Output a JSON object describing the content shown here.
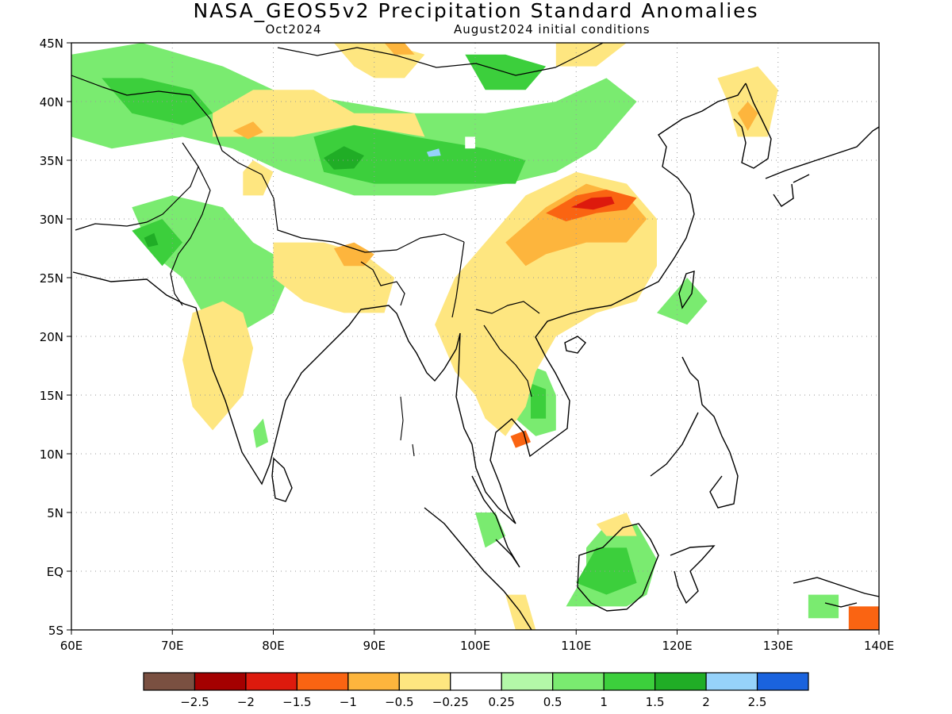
{
  "title": "NASA_GEOS5v2 Precipitation Standard Anomalies",
  "subtitle_left": "Oct2024",
  "subtitle_right": "August2024 initial conditions",
  "map": {
    "lon_range": [
      60,
      140
    ],
    "lat_range": [
      -5,
      45
    ],
    "lon_labels": [
      {
        "lon": 60,
        "label": "60E"
      },
      {
        "lon": 70,
        "label": "70E"
      },
      {
        "lon": 80,
        "label": "80E"
      },
      {
        "lon": 90,
        "label": "90E"
      },
      {
        "lon": 100,
        "label": "100E"
      },
      {
        "lon": 110,
        "label": "110E"
      },
      {
        "lon": 120,
        "label": "120E"
      },
      {
        "lon": 130,
        "label": "130E"
      },
      {
        "lon": 140,
        "label": "140E"
      }
    ],
    "lat_labels": [
      {
        "lat": 45,
        "label": "45N"
      },
      {
        "lat": 40,
        "label": "40N"
      },
      {
        "lat": 35,
        "label": "35N"
      },
      {
        "lat": 30,
        "label": "30N"
      },
      {
        "lat": 25,
        "label": "25N"
      },
      {
        "lat": 20,
        "label": "20N"
      },
      {
        "lat": 15,
        "label": "15N"
      },
      {
        "lat": 10,
        "label": "10N"
      },
      {
        "lat": 5,
        "label": "5N"
      },
      {
        "lat": 0,
        "label": "EQ"
      },
      {
        "lat": -5,
        "label": "5S"
      }
    ],
    "anomaly_regions": [
      {
        "level": "1",
        "pts": [
          [
            60,
            44
          ],
          [
            67,
            45
          ],
          [
            75,
            43
          ],
          [
            80,
            41
          ],
          [
            87,
            40
          ],
          [
            94,
            39
          ],
          [
            101,
            39
          ],
          [
            108,
            40
          ],
          [
            113,
            42
          ],
          [
            116,
            40
          ],
          [
            112,
            36
          ],
          [
            108,
            34
          ],
          [
            103,
            33
          ],
          [
            96,
            32
          ],
          [
            88,
            32
          ],
          [
            81,
            34
          ],
          [
            76,
            36
          ],
          [
            71,
            37
          ],
          [
            64,
            36
          ],
          [
            60,
            37
          ]
        ]
      },
      {
        "level": "1.5",
        "pts": [
          [
            63,
            42
          ],
          [
            67,
            42
          ],
          [
            72,
            41
          ],
          [
            74,
            39
          ],
          [
            71,
            38
          ],
          [
            66,
            39
          ]
        ]
      },
      {
        "level": "1.5",
        "pts": [
          [
            84,
            37
          ],
          [
            88,
            38
          ],
          [
            94,
            37
          ],
          [
            101,
            36
          ],
          [
            105,
            35
          ],
          [
            104,
            33
          ],
          [
            97,
            33
          ],
          [
            90,
            33
          ],
          [
            85,
            34
          ]
        ]
      },
      {
        "level": "1.5",
        "pts": [
          [
            99,
            44
          ],
          [
            103,
            44
          ],
          [
            107,
            43
          ],
          [
            105,
            41
          ],
          [
            101,
            41
          ]
        ]
      },
      {
        "level": "2",
        "pts": [
          [
            85,
            35.2
          ],
          [
            87,
            36.2
          ],
          [
            89,
            35.4
          ],
          [
            88,
            34.3
          ],
          [
            86,
            34.2
          ]
        ]
      },
      {
        "level": "2.5",
        "pts": [
          [
            95.2,
            35.7
          ],
          [
            96.4,
            36
          ],
          [
            96.6,
            35.4
          ],
          [
            95.4,
            35.3
          ]
        ]
      },
      {
        "level": "1",
        "pts": [
          [
            66,
            31
          ],
          [
            70,
            32
          ],
          [
            75,
            31
          ],
          [
            78,
            28
          ],
          [
            82,
            26
          ],
          [
            80,
            22
          ],
          [
            76,
            20
          ],
          [
            73,
            22
          ],
          [
            71,
            25
          ],
          [
            68,
            27
          ]
        ]
      },
      {
        "level": "1.5",
        "pts": [
          [
            66,
            29
          ],
          [
            69,
            30
          ],
          [
            71,
            28
          ],
          [
            69,
            26
          ]
        ]
      },
      {
        "level": "2",
        "pts": [
          [
            67.2,
            28.4
          ],
          [
            68.2,
            28.8
          ],
          [
            68.6,
            27.8
          ],
          [
            67.6,
            27.6
          ]
        ]
      },
      {
        "level": "1",
        "pts": [
          [
            78,
            12
          ],
          [
            79,
            13
          ],
          [
            79.5,
            11
          ],
          [
            78.3,
            10.5
          ]
        ]
      },
      {
        "level": "1",
        "pts": [
          [
            104,
            18
          ],
          [
            107,
            17
          ],
          [
            108,
            15
          ],
          [
            108,
            12
          ],
          [
            106,
            11.5
          ],
          [
            104,
            13
          ]
        ]
      },
      {
        "level": "1.5",
        "pts": [
          [
            105.5,
            16
          ],
          [
            107,
            15.5
          ],
          [
            107,
            13
          ],
          [
            105.5,
            13
          ]
        ]
      },
      {
        "level": "1",
        "pts": [
          [
            109,
            -3
          ],
          [
            111,
            0
          ],
          [
            111,
            2
          ],
          [
            113,
            4
          ],
          [
            116,
            4
          ],
          [
            118,
            1
          ],
          [
            117,
            -2
          ],
          [
            115,
            -3
          ],
          [
            111,
            -3
          ]
        ]
      },
      {
        "level": "1.5",
        "pts": [
          [
            110,
            -1
          ],
          [
            112,
            2
          ],
          [
            115,
            2
          ],
          [
            116,
            -1
          ],
          [
            113,
            -2
          ]
        ]
      },
      {
        "level": "1",
        "pts": [
          [
            100,
            5
          ],
          [
            102,
            5
          ],
          [
            103,
            3
          ],
          [
            101,
            2
          ]
        ]
      },
      {
        "level": "1",
        "pts": [
          [
            118,
            22
          ],
          [
            121,
            25
          ],
          [
            123,
            23
          ],
          [
            121,
            21
          ]
        ]
      },
      {
        "level": "1",
        "pts": [
          [
            133,
            -2
          ],
          [
            136,
            -2
          ],
          [
            136,
            -4
          ],
          [
            133,
            -4
          ]
        ]
      },
      {
        "level": "-0.5",
        "pts": [
          [
            74,
            39
          ],
          [
            78,
            41
          ],
          [
            84,
            41
          ],
          [
            88,
            39
          ],
          [
            94,
            39
          ],
          [
            95,
            37
          ],
          [
            88,
            38
          ],
          [
            82,
            37
          ],
          [
            77,
            37
          ],
          [
            74,
            37
          ]
        ]
      },
      {
        "level": "-0.5",
        "pts": [
          [
            86,
            45
          ],
          [
            91,
            45
          ],
          [
            95,
            44
          ],
          [
            93,
            42
          ],
          [
            90,
            42
          ],
          [
            88,
            43
          ]
        ]
      },
      {
        "level": "-0.5",
        "pts": [
          [
            108,
            45
          ],
          [
            115,
            45
          ],
          [
            112,
            43
          ],
          [
            108,
            43
          ]
        ]
      },
      {
        "level": "-0.5",
        "pts": [
          [
            124,
            42
          ],
          [
            128,
            43
          ],
          [
            130,
            41
          ],
          [
            129,
            37
          ],
          [
            126,
            37
          ],
          [
            125,
            40
          ]
        ]
      },
      {
        "level": "-0.5",
        "pts": [
          [
            96,
            21
          ],
          [
            98,
            25
          ],
          [
            101,
            28
          ],
          [
            105,
            32
          ],
          [
            110,
            34
          ],
          [
            115,
            33
          ],
          [
            118,
            30
          ],
          [
            118,
            26
          ],
          [
            116,
            23
          ],
          [
            112,
            22
          ],
          [
            108,
            20
          ],
          [
            106,
            17
          ],
          [
            105,
            14
          ],
          [
            103,
            11.5
          ],
          [
            101,
            13
          ],
          [
            100,
            15
          ],
          [
            98,
            17
          ]
        ]
      },
      {
        "level": "-1",
        "pts": [
          [
            103,
            28
          ],
          [
            107,
            31
          ],
          [
            111,
            33
          ],
          [
            115,
            32
          ],
          [
            117,
            30
          ],
          [
            115,
            28
          ],
          [
            111,
            28
          ],
          [
            107,
            27
          ],
          [
            105,
            26
          ]
        ]
      },
      {
        "level": "-1.5",
        "pts": [
          [
            107,
            30.5
          ],
          [
            110,
            32
          ],
          [
            113,
            32.5
          ],
          [
            116,
            31.8
          ],
          [
            115,
            30.8
          ],
          [
            112,
            30.5
          ],
          [
            109,
            29.8
          ]
        ]
      },
      {
        "level": "-2",
        "pts": [
          [
            109.5,
            31
          ],
          [
            111.5,
            31.8
          ],
          [
            113.5,
            31.9
          ],
          [
            113.8,
            31.3
          ],
          [
            111.7,
            30.8
          ]
        ]
      },
      {
        "level": "-0.5",
        "pts": [
          [
            72,
            22
          ],
          [
            75,
            23
          ],
          [
            77,
            22
          ],
          [
            78,
            19
          ],
          [
            77,
            15
          ],
          [
            74,
            12
          ],
          [
            72,
            14
          ],
          [
            71,
            18
          ]
        ]
      },
      {
        "level": "-0.5",
        "pts": [
          [
            80,
            28
          ],
          [
            85,
            28
          ],
          [
            89,
            27
          ],
          [
            92,
            25
          ],
          [
            91,
            22
          ],
          [
            87,
            22
          ],
          [
            83,
            23
          ],
          [
            80,
            25
          ]
        ]
      },
      {
        "level": "-1",
        "pts": [
          [
            86,
            27.5
          ],
          [
            88,
            28
          ],
          [
            90,
            27
          ],
          [
            89,
            26
          ],
          [
            87,
            26
          ]
        ]
      },
      {
        "level": "-0.5",
        "pts": [
          [
            103,
            -2
          ],
          [
            105,
            -2
          ],
          [
            106,
            -5
          ],
          [
            104,
            -5
          ]
        ]
      },
      {
        "level": "-0.5",
        "pts": [
          [
            112,
            4
          ],
          [
            115,
            5
          ],
          [
            116,
            3
          ],
          [
            113,
            3
          ]
        ]
      },
      {
        "level": "-0.5",
        "pts": [
          [
            77,
            34
          ],
          [
            78,
            35
          ],
          [
            80,
            34
          ],
          [
            79,
            32
          ],
          [
            77,
            32
          ]
        ]
      },
      {
        "level": "-1",
        "pts": [
          [
            76,
            37.5
          ],
          [
            78,
            38.3
          ],
          [
            79,
            37.4
          ],
          [
            77.5,
            36.8
          ]
        ]
      },
      {
        "level": "-1",
        "pts": [
          [
            91,
            45
          ],
          [
            93,
            45
          ],
          [
            94,
            44
          ],
          [
            92,
            44
          ]
        ]
      },
      {
        "level": "-1",
        "pts": [
          [
            126,
            39
          ],
          [
            127,
            40
          ],
          [
            128,
            39
          ],
          [
            127,
            37.5
          ]
        ]
      },
      {
        "level": "-1.5",
        "pts": [
          [
            103.5,
            11.5
          ],
          [
            105,
            12
          ],
          [
            105.5,
            11
          ],
          [
            104,
            10.5
          ]
        ]
      },
      {
        "level": "-1.5",
        "pts": [
          [
            137,
            -3
          ],
          [
            140,
            -3
          ],
          [
            140,
            -5
          ],
          [
            137,
            -5
          ]
        ]
      }
    ],
    "masked_boxes": [
      [
        86,
        42
      ],
      [
        99,
        37
      ]
    ]
  },
  "colorbar": {
    "colors": [
      "#7a5041",
      "#a40000",
      "#dd1a0d",
      "#fa6412",
      "#fdb53d",
      "#fee680",
      "#ffffff",
      "#b3f8a8",
      "#7aeb70",
      "#3ccf3c",
      "#20ad26",
      "#96d2fa",
      "#1a63de"
    ],
    "labels": [
      "−2.5",
      "−2",
      "−1.5",
      "−1",
      "−0.5",
      "−0.25",
      "0.25",
      "0.5",
      "1",
      "1.5",
      "2",
      "2.5"
    ]
  }
}
